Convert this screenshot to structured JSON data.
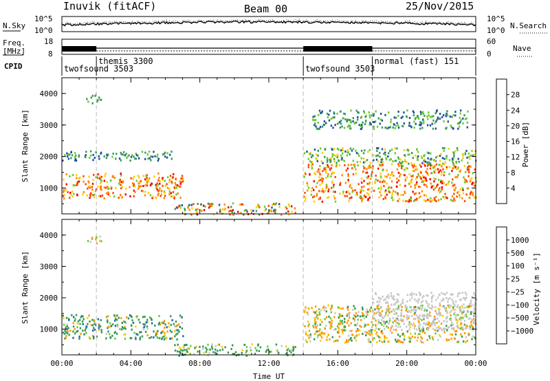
{
  "header": {
    "station": "Inuvik (fitACF)",
    "beam": "Beam 00",
    "date": "25/Nov/2015"
  },
  "noise_panel": {
    "left_label": "N.Sky",
    "right_label": "N.Search",
    "tick_top": "10^5",
    "tick_bottom": "10^0"
  },
  "freq_panel": {
    "left_label_1": "Freq.",
    "left_label_2": "[MHz]",
    "left_tick_top": "18",
    "left_tick_bottom": "8",
    "right_label": "Nave",
    "right_tick_top": "60",
    "right_tick_bottom": "0"
  },
  "cpid_panel": {
    "label": "CPID",
    "modes": [
      {
        "name": "twofsound 3503",
        "start_hour": 0
      },
      {
        "name": "themis 3300",
        "start_hour": 2
      },
      {
        "name": "twofsound 3503",
        "start_hour": 14
      },
      {
        "name": "normal (fast) 151",
        "start_hour": 18
      }
    ]
  },
  "chart_data": [
    {
      "type": "heatmap",
      "parameter": "Power",
      "units": "dB",
      "colorbar_label": "Power [dB]",
      "colorbar_ticks": [
        "4",
        "8",
        "12",
        "16",
        "20",
        "24",
        "28"
      ],
      "colorbar_colors": [
        "#0000ff",
        "#1e4ea0",
        "#3a9a5a",
        "#66cc33",
        "#ffcc00",
        "#ff8800",
        "#ff4400",
        "#ee0000"
      ],
      "ylabel": "Slant Range [km]",
      "xlim_hours": [
        0,
        24
      ],
      "ylim_km": [
        180,
        4500
      ],
      "yticks": [
        "1000",
        "2000",
        "3000",
        "4000"
      ],
      "scatter_regions": [
        {
          "t": [
            0.0,
            7.0
          ],
          "r": [
            700,
            1500
          ],
          "value_range": [
            14,
            30
          ]
        },
        {
          "t": [
            0.0,
            6.5
          ],
          "r": [
            1900,
            2200
          ],
          "value_range": [
            4,
            14
          ]
        },
        {
          "t": [
            1.4,
            2.3
          ],
          "r": [
            3700,
            4000
          ],
          "value_range": [
            8,
            16
          ]
        },
        {
          "t": [
            6.5,
            13.5
          ],
          "r": [
            180,
            550
          ],
          "value_range": [
            6,
            30
          ]
        },
        {
          "t": [
            14.0,
            24.0
          ],
          "r": [
            600,
            1800
          ],
          "value_range": [
            14,
            30
          ]
        },
        {
          "t": [
            14.0,
            24.0
          ],
          "r": [
            1800,
            2300
          ],
          "value_range": [
            6,
            18
          ]
        },
        {
          "t": [
            14.5,
            23.5
          ],
          "r": [
            2900,
            3500
          ],
          "value_range": [
            4,
            16
          ]
        }
      ]
    },
    {
      "type": "heatmap",
      "parameter": "Velocity",
      "units": "m s^-1",
      "colorbar_label": "Velocity [m s⁻¹]",
      "colorbar_ticks": [
        "1000",
        "500",
        "100",
        "25",
        "−25",
        "−100",
        "−500",
        "−1000"
      ],
      "colorbar_colors": [
        "#2233bb",
        "#2266aa",
        "#339955",
        "#66cc33",
        "#c8c8c8",
        "#ffcc00",
        "#ff9900",
        "#ff5500",
        "#ee0000"
      ],
      "ylabel": "Slant Range [km]",
      "xlabel": "Time UT",
      "xlim_hours": [
        0,
        24
      ],
      "ylim_km": [
        180,
        4500
      ],
      "yticks": [
        "1000",
        "2000",
        "3000",
        "4000"
      ],
      "xticks": [
        "00:00",
        "04:00",
        "08:00",
        "12:00",
        "16:00",
        "20:00",
        "00:00"
      ],
      "scatter_regions": [
        {
          "t": [
            0.0,
            7.0
          ],
          "r": [
            700,
            1500
          ],
          "value_range": [
            -200,
            600
          ]
        },
        {
          "t": [
            1.4,
            2.3
          ],
          "r": [
            3700,
            4000
          ],
          "value_range": [
            -200,
            100
          ]
        },
        {
          "t": [
            6.5,
            13.5
          ],
          "r": [
            180,
            550
          ],
          "value_range": [
            -100,
            500
          ]
        },
        {
          "t": [
            14.0,
            24.0
          ],
          "r": [
            600,
            1800
          ],
          "value_range": [
            -300,
            200
          ]
        },
        {
          "t": [
            18.0,
            24.0
          ],
          "r": [
            1000,
            2200
          ],
          "value_range": [
            -25,
            25
          ]
        }
      ]
    }
  ]
}
